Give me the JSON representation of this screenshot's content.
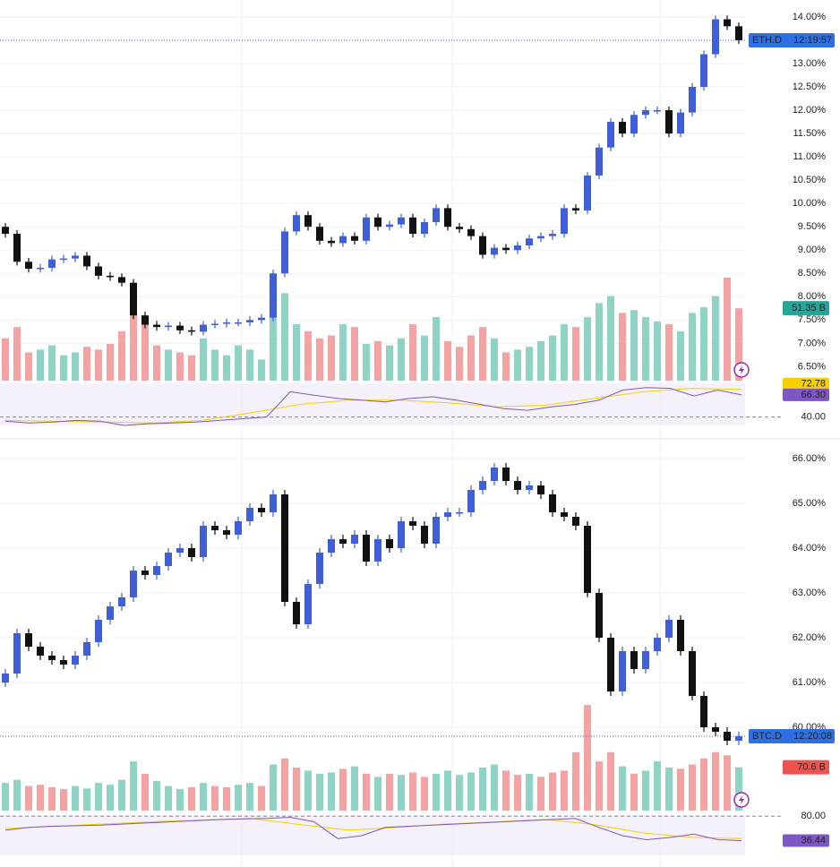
{
  "chart_data": [
    {
      "type": "candlestick",
      "symbol": "ETH.D",
      "time": "12:19:57",
      "up_color": "#3f5fd8",
      "down_color": "#111111",
      "ylim": [
        6.2,
        14.21
      ],
      "yticks": [
        {
          "value": 6.5,
          "label": "6.50%"
        },
        {
          "value": 7,
          "label": "7.00%"
        },
        {
          "value": 7.5,
          "label": "7.50%"
        },
        {
          "value": 8,
          "label": "8.00%"
        },
        {
          "value": 8.5,
          "label": "8.50%"
        },
        {
          "value": 9,
          "label": "9.00%"
        },
        {
          "value": 9.5,
          "label": "9.50%"
        },
        {
          "value": 10,
          "label": "10.00%"
        },
        {
          "value": 10.5,
          "label": "10.50%"
        },
        {
          "value": 11,
          "label": "11.00%"
        },
        {
          "value": 11.5,
          "label": "11.50%"
        },
        {
          "value": 12,
          "label": "12.00%"
        },
        {
          "value": 12.5,
          "label": "12.50%"
        },
        {
          "value": 13,
          "label": "13.00%"
        },
        {
          "value": 13.5,
          "label": "13.50%"
        },
        {
          "value": 14,
          "label": "14.00%"
        }
      ],
      "open": [
        9.5,
        9.35,
        8.75,
        8.6,
        8.62,
        8.8,
        8.82,
        8.88,
        8.65,
        8.45,
        8.42,
        8.3,
        7.6,
        7.4,
        7.35,
        7.38,
        7.28,
        7.25,
        7.4,
        7.42,
        7.45,
        7.45,
        7.5,
        7.55,
        8.5,
        9.4,
        9.75,
        9.5,
        9.2,
        9.15,
        9.3,
        9.2,
        9.7,
        9.5,
        9.55,
        9.7,
        9.35,
        9.6,
        9.9,
        9.5,
        9.45,
        9.3,
        8.9,
        9.05,
        9.0,
        9.1,
        9.25,
        9.3,
        9.35,
        9.9,
        9.85,
        10.6,
        11.2,
        11.75,
        11.5,
        11.9,
        12.0,
        12.0,
        11.5,
        11.95,
        12.5,
        13.2,
        13.95,
        13.8
      ],
      "high": [
        9.58,
        9.43,
        8.83,
        8.7,
        8.88,
        8.9,
        8.96,
        8.96,
        8.73,
        8.53,
        8.5,
        8.38,
        7.68,
        7.48,
        7.46,
        7.46,
        7.36,
        7.48,
        7.5,
        7.53,
        7.53,
        7.58,
        7.63,
        8.58,
        9.48,
        9.83,
        9.83,
        9.58,
        9.28,
        9.38,
        9.38,
        9.78,
        9.78,
        9.63,
        9.78,
        9.78,
        9.68,
        9.98,
        9.98,
        9.58,
        9.53,
        9.38,
        9.13,
        9.13,
        9.18,
        9.33,
        9.38,
        9.43,
        9.98,
        9.98,
        10.68,
        11.28,
        11.83,
        11.83,
        11.98,
        12.08,
        12.08,
        12.08,
        12.03,
        12.58,
        13.28,
        14.03,
        14.03,
        13.88
      ],
      "low": [
        9.27,
        8.67,
        8.52,
        8.52,
        8.54,
        8.72,
        8.74,
        8.57,
        8.37,
        8.34,
        8.22,
        7.52,
        7.32,
        7.27,
        7.27,
        7.2,
        7.17,
        7.17,
        7.32,
        7.34,
        7.37,
        7.37,
        7.42,
        7.47,
        8.42,
        9.32,
        9.42,
        9.12,
        9.07,
        9.07,
        9.12,
        9.12,
        9.42,
        9.42,
        9.47,
        9.27,
        9.27,
        9.52,
        9.42,
        9.37,
        9.22,
        8.82,
        8.82,
        8.92,
        8.92,
        9.02,
        9.17,
        9.22,
        9.27,
        9.77,
        9.77,
        10.52,
        11.12,
        11.42,
        11.42,
        11.82,
        11.92,
        11.42,
        11.42,
        11.87,
        12.42,
        13.12,
        13.72,
        13.42
      ],
      "close": [
        9.35,
        8.75,
        8.6,
        8.62,
        8.8,
        8.82,
        8.88,
        8.65,
        8.45,
        8.42,
        8.3,
        7.6,
        7.4,
        7.35,
        7.38,
        7.28,
        7.25,
        7.4,
        7.42,
        7.45,
        7.45,
        7.5,
        7.55,
        8.5,
        9.4,
        9.75,
        9.5,
        9.2,
        9.15,
        9.3,
        9.2,
        9.7,
        9.5,
        9.55,
        9.7,
        9.35,
        9.6,
        9.9,
        9.5,
        9.45,
        9.3,
        8.9,
        9.05,
        9.0,
        9.1,
        9.25,
        9.3,
        9.35,
        9.9,
        9.85,
        10.6,
        11.2,
        11.75,
        11.5,
        11.9,
        12.0,
        12.0,
        11.5,
        11.95,
        12.5,
        13.2,
        13.95,
        13.8,
        13.5
      ],
      "volume": {
        "values": [
          30,
          38,
          20,
          22,
          25,
          18,
          20,
          24,
          22,
          26,
          35,
          58,
          45,
          25,
          22,
          20,
          18,
          30,
          22,
          18,
          25,
          22,
          15,
          45,
          62,
          40,
          35,
          30,
          32,
          40,
          38,
          26,
          28,
          25,
          30,
          40,
          32,
          45,
          28,
          24,
          32,
          38,
          30,
          20,
          22,
          24,
          28,
          32,
          40,
          38,
          45,
          55,
          60,
          48,
          50,
          45,
          42,
          40,
          35,
          48,
          52,
          60,
          73,
          51.35
        ],
        "last_label": "51.35 B",
        "label_color": "#26a69a"
      },
      "rsi": {
        "ylim": [
          30,
          80
        ],
        "yticks": [
          {
            "value": 40,
            "label": "40.00"
          }
        ],
        "color": "#7e57c2",
        "values": [
          35,
          33,
          34,
          36,
          35,
          30,
          32,
          33,
          34,
          36,
          38,
          40,
          70,
          66,
          62,
          60,
          58,
          62,
          64,
          60,
          55,
          50,
          48,
          52,
          55,
          60,
          72,
          75,
          74,
          65,
          72,
          66.3
        ],
        "last_label": "66.30",
        "ma": {
          "values": [
            36,
            35,
            34,
            33,
            36,
            45,
            55,
            60,
            60,
            57,
            52,
            54,
            62,
            70,
            74,
            72.78
          ],
          "last_label": "72.78",
          "color": "#f5d100"
        }
      }
    },
    {
      "type": "candlestick",
      "symbol": "BTC.D",
      "time": "12:20:08",
      "up_color": "#3f5fd8",
      "down_color": "#111111",
      "ylim": [
        59.34,
        66.14
      ],
      "yticks": [
        {
          "value": 60,
          "label": "60.00%"
        },
        {
          "value": 61,
          "label": "61.00%"
        },
        {
          "value": 62,
          "label": "62.00%"
        },
        {
          "value": 63,
          "label": "63.00%"
        },
        {
          "value": 64,
          "label": "64.00%"
        },
        {
          "value": 65,
          "label": "65.00%"
        },
        {
          "value": 66,
          "label": "66.00%"
        }
      ],
      "open": [
        61.0,
        61.2,
        62.1,
        61.8,
        61.6,
        61.5,
        61.4,
        61.6,
        61.9,
        62.4,
        62.7,
        62.9,
        63.5,
        63.4,
        63.6,
        63.9,
        64.0,
        63.8,
        64.5,
        64.4,
        64.3,
        64.6,
        64.9,
        64.8,
        65.2,
        62.8,
        62.3,
        63.2,
        63.9,
        64.2,
        64.1,
        64.3,
        63.7,
        64.2,
        64.0,
        64.6,
        64.5,
        64.1,
        64.7,
        64.8,
        64.8,
        65.3,
        65.5,
        65.8,
        65.5,
        65.3,
        65.4,
        65.2,
        64.8,
        64.7,
        64.5,
        63.0,
        62.0,
        60.8,
        61.7,
        61.3,
        61.7,
        62.0,
        62.4,
        61.7,
        60.7,
        60.0,
        59.9,
        59.7
      ],
      "high": [
        61.3,
        62.2,
        62.2,
        61.9,
        61.7,
        61.6,
        61.7,
        62.0,
        62.5,
        62.8,
        63.0,
        63.6,
        63.6,
        63.7,
        64.0,
        64.1,
        64.1,
        64.6,
        64.6,
        64.5,
        64.7,
        65.0,
        65.0,
        65.3,
        65.3,
        62.9,
        63.3,
        64.0,
        64.3,
        64.3,
        64.4,
        64.4,
        64.3,
        64.3,
        64.7,
        64.7,
        64.6,
        64.8,
        64.9,
        64.9,
        65.4,
        65.6,
        65.9,
        65.9,
        65.6,
        65.5,
        65.5,
        65.3,
        64.9,
        64.8,
        64.6,
        63.1,
        62.1,
        61.8,
        61.8,
        61.8,
        62.1,
        62.5,
        62.5,
        61.8,
        60.8,
        60.1,
        60.0,
        59.9
      ],
      "low": [
        60.9,
        61.1,
        61.7,
        61.5,
        61.4,
        61.3,
        61.3,
        61.5,
        61.8,
        62.3,
        62.6,
        62.8,
        63.3,
        63.3,
        63.5,
        63.8,
        63.7,
        63.7,
        64.3,
        64.2,
        64.2,
        64.5,
        64.7,
        64.7,
        62.7,
        62.2,
        62.2,
        63.1,
        63.8,
        64.0,
        64.0,
        63.6,
        63.6,
        63.9,
        63.9,
        64.4,
        64.0,
        64.0,
        64.6,
        64.7,
        64.7,
        65.2,
        65.4,
        65.4,
        65.2,
        65.2,
        65.1,
        64.7,
        64.6,
        64.4,
        62.9,
        61.9,
        60.7,
        60.7,
        61.2,
        61.2,
        61.6,
        61.9,
        61.6,
        60.6,
        59.9,
        59.8,
        59.6,
        59.6
      ],
      "close": [
        61.2,
        62.1,
        61.8,
        61.6,
        61.5,
        61.4,
        61.6,
        61.9,
        62.4,
        62.7,
        62.9,
        63.5,
        63.4,
        63.6,
        63.9,
        64.0,
        63.8,
        64.5,
        64.4,
        64.3,
        64.6,
        64.9,
        64.8,
        65.2,
        62.8,
        62.3,
        63.2,
        63.9,
        64.2,
        64.1,
        64.3,
        63.7,
        64.2,
        64.0,
        64.6,
        64.5,
        64.1,
        64.7,
        64.8,
        64.8,
        65.3,
        65.5,
        65.8,
        65.5,
        65.3,
        65.4,
        65.2,
        64.8,
        64.7,
        64.5,
        63.0,
        62.0,
        60.8,
        61.7,
        61.3,
        61.7,
        62.0,
        62.4,
        61.7,
        60.7,
        60.0,
        59.9,
        59.7,
        59.8
      ],
      "volume": {
        "values": [
          45,
          50,
          40,
          42,
          38,
          35,
          40,
          36,
          45,
          42,
          50,
          80,
          60,
          48,
          40,
          35,
          38,
          45,
          40,
          38,
          42,
          45,
          40,
          75,
          85,
          70,
          65,
          60,
          62,
          68,
          72,
          60,
          55,
          60,
          58,
          62,
          55,
          60,
          65,
          58,
          62,
          70,
          75,
          65,
          58,
          60,
          55,
          62,
          65,
          95,
          172,
          80,
          95,
          72,
          60,
          65,
          80,
          70,
          68,
          75,
          85,
          95,
          90,
          70.6
        ],
        "last_label": "70.6 B",
        "label_color": "#ef5350"
      },
      "rsi": {
        "ylim": [
          10,
          82
        ],
        "yticks": [
          {
            "value": 80,
            "label": "80.00"
          }
        ],
        "color": "#7e57c2",
        "values": [
          55,
          60,
          62,
          63,
          64,
          66,
          68,
          70,
          72,
          74,
          75,
          76,
          78,
          70,
          40,
          45,
          60,
          62,
          64,
          66,
          68,
          70,
          72,
          74,
          76,
          60,
          45,
          38,
          42,
          48,
          38,
          36.44
        ],
        "last_label": "36.44",
        "ma": {
          "values": [
            58,
            62,
            66,
            70,
            73,
            76,
            65,
            55,
            60,
            66,
            70,
            74,
            65,
            50,
            42,
            40
          ],
          "color": "#f5d100"
        }
      }
    }
  ]
}
